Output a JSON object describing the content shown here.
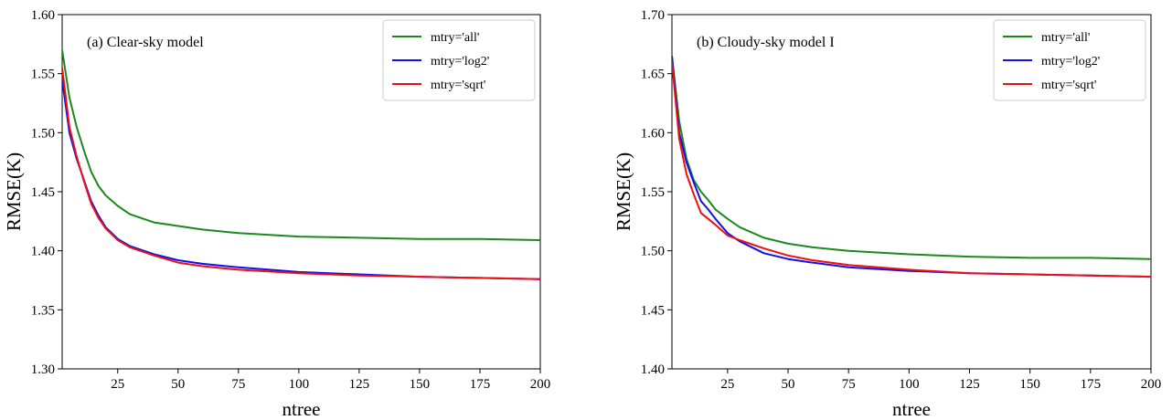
{
  "chart_data": [
    {
      "type": "line",
      "title": "(a) Clear-sky model",
      "xlabel": "ntree",
      "ylabel": "RMSE(K)",
      "xlim": [
        2,
        200
      ],
      "ylim": [
        1.3,
        1.6
      ],
      "xticks": [
        25,
        50,
        75,
        100,
        125,
        150,
        175,
        200
      ],
      "yticks": [
        "1.30",
        "1.35",
        "1.40",
        "1.45",
        "1.50",
        "1.55",
        "1.60"
      ],
      "legend": "top-right",
      "grid": false,
      "series": [
        {
          "name": "mtry='all'",
          "color": "#1a8a1a",
          "x": [
            2,
            5,
            8,
            11,
            14,
            17,
            20,
            25,
            30,
            40,
            50,
            60,
            75,
            100,
            125,
            150,
            175,
            200
          ],
          "y": [
            1.57,
            1.53,
            1.505,
            1.485,
            1.467,
            1.455,
            1.447,
            1.438,
            1.431,
            1.424,
            1.421,
            1.418,
            1.415,
            1.412,
            1.411,
            1.41,
            1.41,
            1.409
          ]
        },
        {
          "name": "mtry='log2'",
          "color": "#1010ee",
          "x": [
            2,
            5,
            8,
            11,
            14,
            17,
            20,
            25,
            30,
            40,
            50,
            60,
            75,
            100,
            125,
            150,
            175,
            200
          ],
          "y": [
            1.545,
            1.5,
            1.478,
            1.46,
            1.442,
            1.43,
            1.42,
            1.41,
            1.404,
            1.397,
            1.392,
            1.389,
            1.386,
            1.382,
            1.38,
            1.378,
            1.377,
            1.376
          ]
        },
        {
          "name": "mtry='sqrt'",
          "color": "#ee1010",
          "x": [
            2,
            5,
            8,
            11,
            14,
            17,
            20,
            25,
            30,
            40,
            50,
            60,
            75,
            100,
            125,
            150,
            175,
            200
          ],
          "y": [
            1.555,
            1.505,
            1.48,
            1.459,
            1.44,
            1.428,
            1.419,
            1.409,
            1.403,
            1.396,
            1.39,
            1.387,
            1.384,
            1.381,
            1.379,
            1.378,
            1.377,
            1.376
          ]
        }
      ]
    },
    {
      "type": "line",
      "title": "(b) Cloudy-sky model I",
      "xlabel": "ntree",
      "ylabel": "RMSE(K)",
      "xlim": [
        2,
        200
      ],
      "ylim": [
        1.4,
        1.7
      ],
      "xticks": [
        25,
        50,
        75,
        100,
        125,
        150,
        175,
        200
      ],
      "yticks": [
        "1.40",
        "1.45",
        "1.50",
        "1.55",
        "1.60",
        "1.65",
        "1.70"
      ],
      "legend": "top-right",
      "grid": false,
      "series": [
        {
          "name": "mtry='all'",
          "color": "#1a8a1a",
          "x": [
            2,
            5,
            8,
            11,
            14,
            17,
            20,
            25,
            30,
            40,
            50,
            60,
            75,
            100,
            125,
            150,
            175,
            200
          ],
          "y": [
            1.665,
            1.61,
            1.578,
            1.56,
            1.55,
            1.543,
            1.535,
            1.527,
            1.52,
            1.511,
            1.506,
            1.503,
            1.5,
            1.497,
            1.495,
            1.494,
            1.494,
            1.493
          ]
        },
        {
          "name": "mtry='log2'",
          "color": "#1010ee",
          "x": [
            2,
            5,
            8,
            11,
            14,
            17,
            20,
            25,
            30,
            40,
            50,
            60,
            75,
            100,
            125,
            150,
            175,
            200
          ],
          "y": [
            1.665,
            1.6,
            1.575,
            1.558,
            1.542,
            1.535,
            1.527,
            1.515,
            1.508,
            1.498,
            1.493,
            1.49,
            1.486,
            1.483,
            1.481,
            1.48,
            1.479,
            1.478
          ]
        },
        {
          "name": "mtry='sqrt'",
          "color": "#ee1010",
          "x": [
            2,
            5,
            8,
            11,
            14,
            17,
            20,
            25,
            30,
            40,
            50,
            60,
            75,
            100,
            125,
            150,
            175,
            200
          ],
          "y": [
            1.66,
            1.595,
            1.565,
            1.548,
            1.532,
            1.527,
            1.522,
            1.513,
            1.509,
            1.502,
            1.496,
            1.492,
            1.488,
            1.484,
            1.481,
            1.48,
            1.479,
            1.478
          ]
        }
      ]
    }
  ]
}
